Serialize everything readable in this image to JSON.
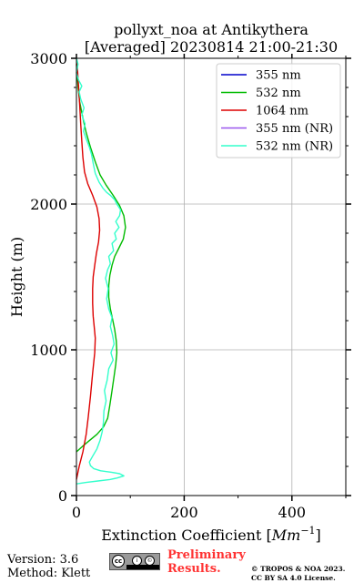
{
  "chart_data": {
    "type": "line",
    "title_line1": "pollyxt_noa at Antikythera",
    "title_line2": "[Averaged] 20230814 21:00-21:30",
    "xlabel": "Extinction Coefficient [",
    "xlabel_unit": "Mm",
    "xlabel_exp": "−1",
    "xlabel_end": "]",
    "ylabel": "Height (m)",
    "xlim": [
      0,
      500
    ],
    "ylim": [
      0,
      3000
    ],
    "xticks": [
      0,
      200,
      400
    ],
    "yticks": [
      0,
      1000,
      2000,
      3000
    ],
    "xtick_labels": [
      "0",
      "200",
      "400"
    ],
    "ytick_labels": [
      "0",
      "1000",
      "2000",
      "3000"
    ],
    "grid": true,
    "legend_position": "top-right",
    "series": [
      {
        "name": "355 nm",
        "color": "#0000cc",
        "points": []
      },
      {
        "name": "532 nm",
        "color": "#00bb00",
        "points": [
          [
            0,
            300
          ],
          [
            12,
            340
          ],
          [
            25,
            380
          ],
          [
            38,
            420
          ],
          [
            50,
            470
          ],
          [
            58,
            530
          ],
          [
            62,
            620
          ],
          [
            66,
            720
          ],
          [
            70,
            820
          ],
          [
            73,
            900
          ],
          [
            75,
            980
          ],
          [
            74,
            1060
          ],
          [
            71,
            1140
          ],
          [
            67,
            1210
          ],
          [
            63,
            1280
          ],
          [
            60,
            1360
          ],
          [
            60,
            1440
          ],
          [
            62,
            1510
          ],
          [
            66,
            1580
          ],
          [
            71,
            1640
          ],
          [
            79,
            1700
          ],
          [
            87,
            1760
          ],
          [
            91,
            1840
          ],
          [
            88,
            1920
          ],
          [
            80,
            1990
          ],
          [
            68,
            2060
          ],
          [
            55,
            2130
          ],
          [
            44,
            2200
          ],
          [
            35,
            2290
          ],
          [
            26,
            2390
          ],
          [
            18,
            2490
          ],
          [
            12,
            2590
          ],
          [
            6,
            2700
          ],
          [
            3,
            2800
          ],
          [
            1,
            2900
          ],
          [
            0,
            2960
          ]
        ]
      },
      {
        "name": "1064 nm",
        "color": "#dd0000",
        "points": [
          [
            0,
            110
          ],
          [
            5,
            200
          ],
          [
            12,
            300
          ],
          [
            18,
            420
          ],
          [
            22,
            540
          ],
          [
            26,
            680
          ],
          [
            30,
            840
          ],
          [
            34,
            980
          ],
          [
            35,
            1080
          ],
          [
            33,
            1160
          ],
          [
            31,
            1230
          ],
          [
            30,
            1320
          ],
          [
            30,
            1420
          ],
          [
            31,
            1500
          ],
          [
            34,
            1580
          ],
          [
            37,
            1660
          ],
          [
            41,
            1740
          ],
          [
            43,
            1820
          ],
          [
            42,
            1900
          ],
          [
            38,
            1980
          ],
          [
            30,
            2060
          ],
          [
            21,
            2140
          ],
          [
            15,
            2220
          ],
          [
            12,
            2320
          ],
          [
            10,
            2430
          ],
          [
            8,
            2550
          ],
          [
            6,
            2680
          ],
          [
            4,
            2800
          ],
          [
            2,
            2920
          ],
          [
            1,
            2980
          ]
        ]
      },
      {
        "name": "355 nm (NR)",
        "color": "#9955ee",
        "points": []
      },
      {
        "name": "532 nm (NR)",
        "color": "#33ffcc",
        "points": [
          [
            0,
            80
          ],
          [
            18,
            90
          ],
          [
            40,
            100
          ],
          [
            62,
            110
          ],
          [
            75,
            120
          ],
          [
            88,
            135
          ],
          [
            80,
            150
          ],
          [
            65,
            160
          ],
          [
            45,
            170
          ],
          [
            32,
            185
          ],
          [
            26,
            205
          ],
          [
            24,
            230
          ],
          [
            30,
            270
          ],
          [
            38,
            320
          ],
          [
            44,
            380
          ],
          [
            48,
            440
          ],
          [
            50,
            500
          ],
          [
            51,
            580
          ],
          [
            55,
            650
          ],
          [
            52,
            720
          ],
          [
            57,
            790
          ],
          [
            60,
            870
          ],
          [
            68,
            930
          ],
          [
            64,
            980
          ],
          [
            70,
            1040
          ],
          [
            67,
            1100
          ],
          [
            63,
            1160
          ],
          [
            66,
            1220
          ],
          [
            60,
            1280
          ],
          [
            56,
            1350
          ],
          [
            59,
            1420
          ],
          [
            54,
            1490
          ],
          [
            58,
            1550
          ],
          [
            63,
            1590
          ],
          [
            60,
            1640
          ],
          [
            69,
            1680
          ],
          [
            66,
            1730
          ],
          [
            74,
            1760
          ],
          [
            71,
            1800
          ],
          [
            79,
            1840
          ],
          [
            73,
            1880
          ],
          [
            80,
            1920
          ],
          [
            82,
            1960
          ],
          [
            75,
            2000
          ],
          [
            71,
            2030
          ],
          [
            63,
            2060
          ],
          [
            56,
            2080
          ],
          [
            49,
            2110
          ],
          [
            42,
            2150
          ],
          [
            35,
            2210
          ],
          [
            31,
            2280
          ],
          [
            28,
            2340
          ],
          [
            24,
            2390
          ],
          [
            19,
            2440
          ],
          [
            13,
            2500
          ],
          [
            16,
            2550
          ],
          [
            10,
            2610
          ],
          [
            14,
            2660
          ],
          [
            8,
            2720
          ],
          [
            5,
            2770
          ],
          [
            10,
            2810
          ],
          [
            4,
            2850
          ],
          [
            0,
            2900
          ],
          [
            3,
            2960
          ],
          [
            0,
            3000
          ]
        ]
      }
    ]
  },
  "footer": {
    "version": "Version: 3.6",
    "method": "Method: Klett",
    "cc": "cc",
    "cc_by": "i",
    "cc_sa": "©",
    "preliminary_line1": "Preliminary",
    "preliminary_line2": "Results.",
    "copyright_line1": "© TROPOS & NOA 2023.",
    "copyright_line2": "CC BY SA 4.0 License."
  }
}
